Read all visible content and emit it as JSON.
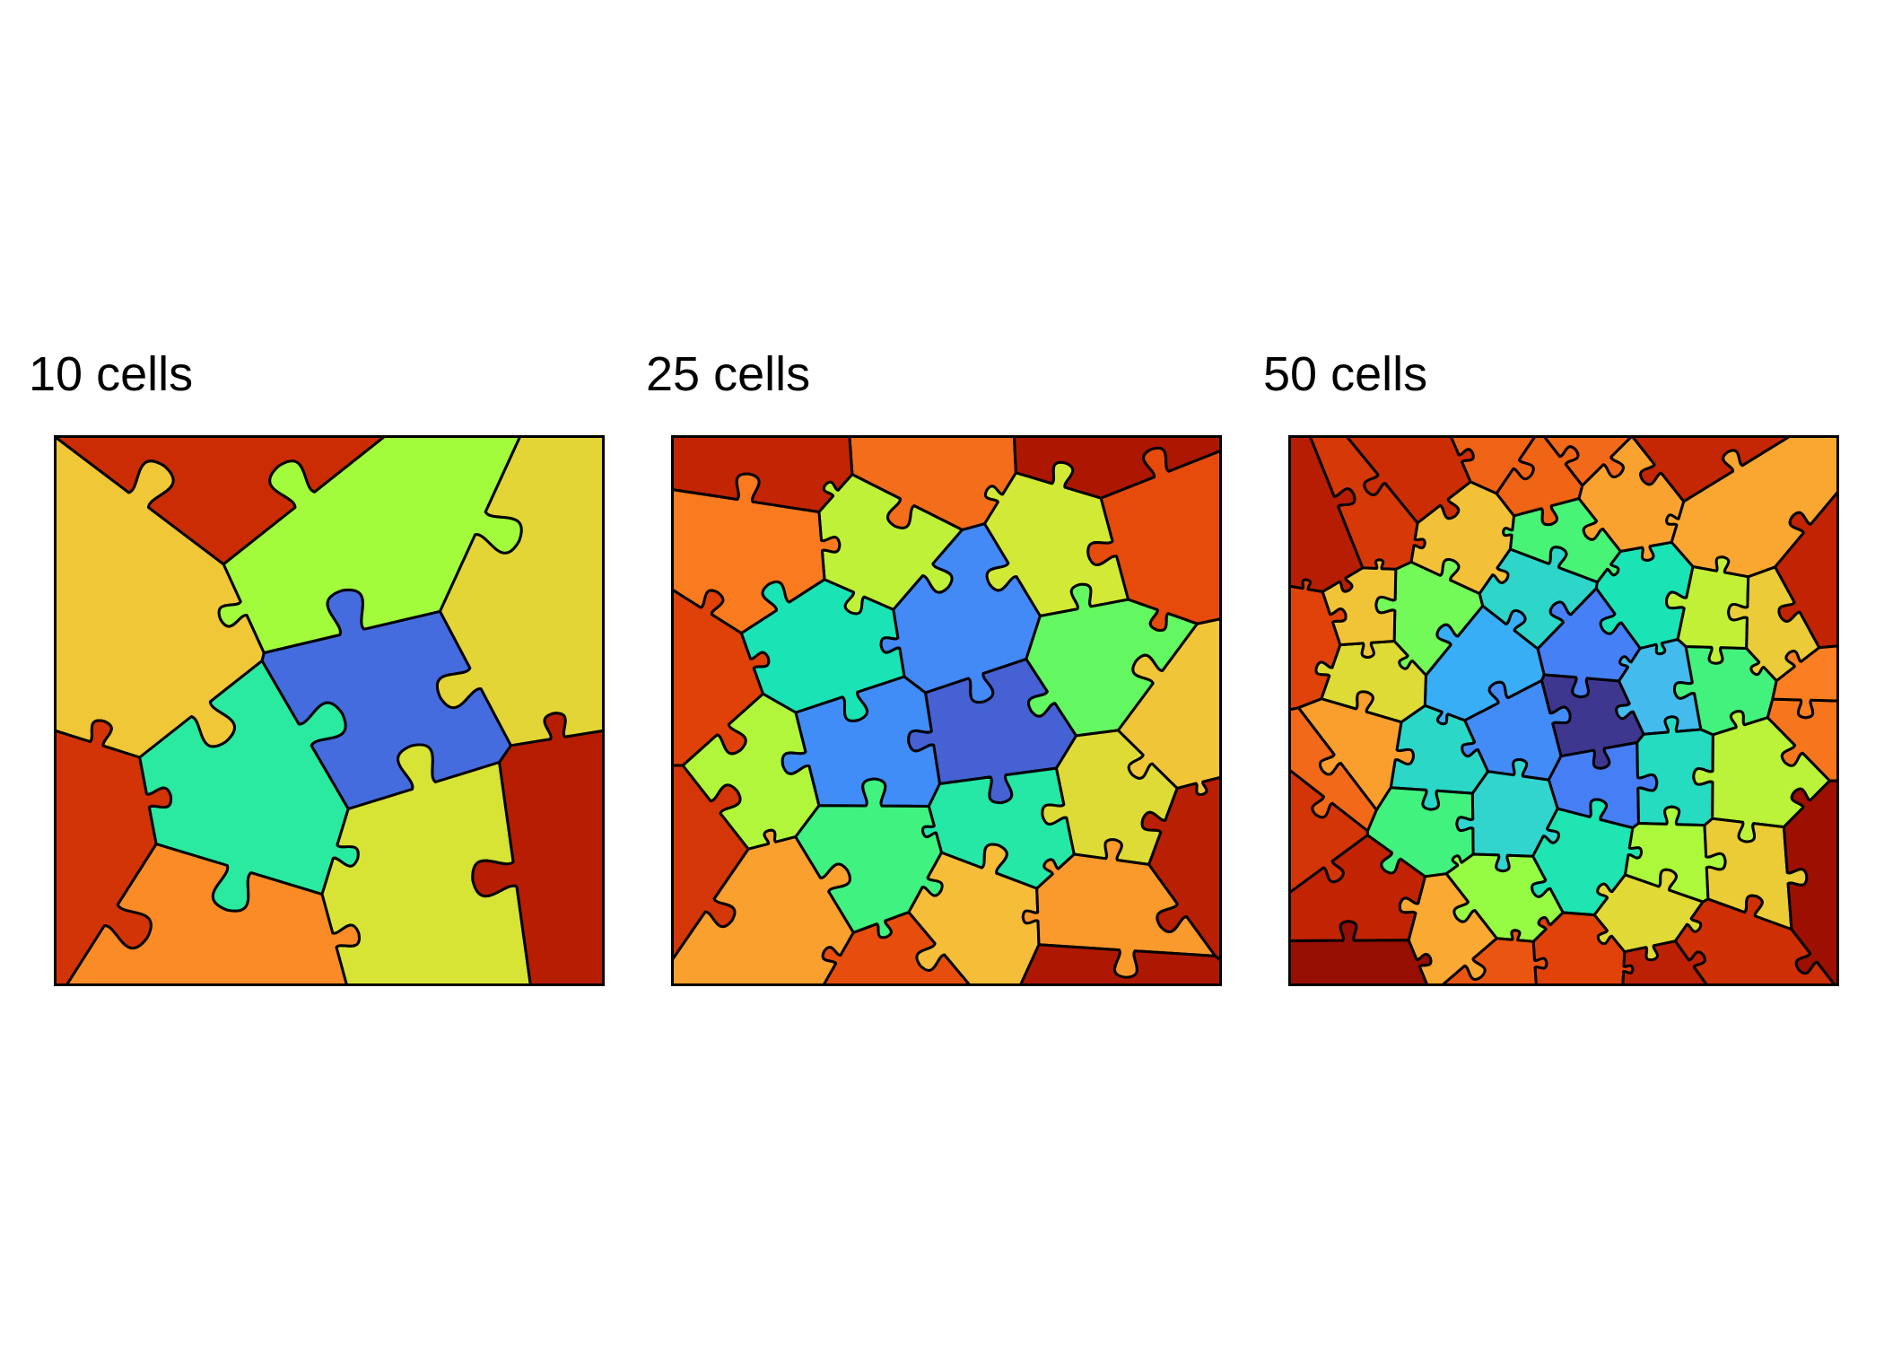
{
  "panels": [
    {
      "title": "10 cells",
      "cells": 10
    },
    {
      "title": "25 cells",
      "cells": 25
    },
    {
      "title": "50 cells",
      "cells": 50
    }
  ],
  "colors": {
    "outline": "#000000",
    "palette": [
      "#30123b",
      "#3e378f",
      "#455bcd",
      "#4681f7",
      "#35abf8",
      "#4ac4e6",
      "#1ae4b6",
      "#4df66e",
      "#a2fc3c",
      "#d3e935",
      "#f9ba38",
      "#fb8022",
      "#e4460a",
      "#c42503",
      "#a41201",
      "#7a0403"
    ]
  }
}
